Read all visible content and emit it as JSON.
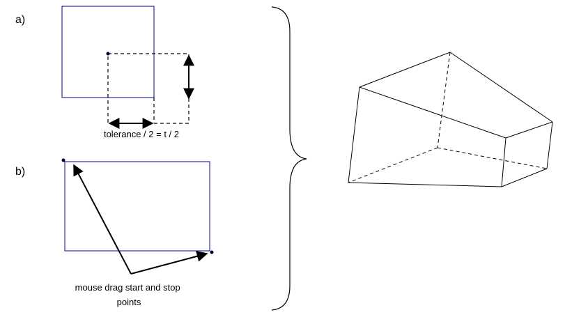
{
  "panels": {
    "a": {
      "label": "a)",
      "caption": "tolerance / 2 = t / 2"
    },
    "b": {
      "label": "b)",
      "caption_lines": [
        "mouse drag start and stop",
        "points"
      ]
    }
  },
  "colors": {
    "rect_stroke": "#00008b",
    "point_fill": "#000040",
    "line": "#000000"
  }
}
